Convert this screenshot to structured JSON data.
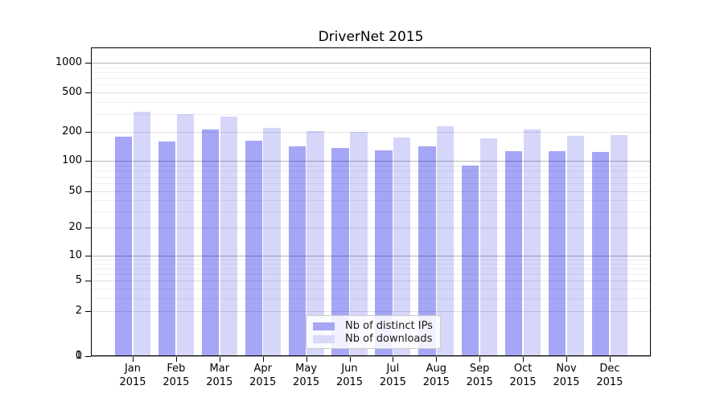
{
  "figure": {
    "title": "DriverNet 2015"
  },
  "chart_data": {
    "type": "bar",
    "title": "DriverNet 2015",
    "xlabel": "",
    "ylabel": "",
    "x_months": [
      "Jan",
      "Feb",
      "Mar",
      "Apr",
      "May",
      "Jun",
      "Jul",
      "Aug",
      "Sep",
      "Oct",
      "Nov",
      "Dec"
    ],
    "x_year": "2015",
    "y_ticks": [
      0,
      1,
      2,
      5,
      10,
      20,
      50,
      100,
      200,
      500,
      1000
    ],
    "yscale": "symlog",
    "ylim": [
      0,
      1500
    ],
    "grid": true,
    "legend_position": "lower center inside",
    "series": [
      {
        "name": "Nb of distinct IPs",
        "color": "#a6a6f5",
        "fill": "rgba(0,0,230,0.35)",
        "values": [
          178,
          160,
          211,
          163,
          143,
          137,
          130,
          141,
          90,
          126,
          127,
          125
        ]
      },
      {
        "name": "Nb of downloads",
        "color": "#d9d9fb",
        "fill": "rgba(0,0,230,0.16)",
        "values": [
          318,
          301,
          287,
          218,
          204,
          198,
          176,
          229,
          170,
          211,
          181,
          184
        ]
      }
    ]
  }
}
